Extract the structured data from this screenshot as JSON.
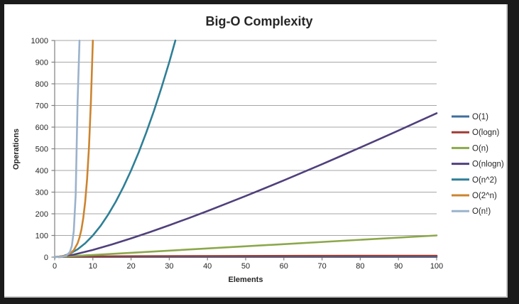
{
  "chart_data": {
    "type": "line",
    "title": "Big-O Complexity",
    "xlabel": "Elements",
    "ylabel": "Operations",
    "xlim": [
      0,
      100
    ],
    "ylim": [
      0,
      1000
    ],
    "xticks": [
      0,
      10,
      20,
      30,
      40,
      50,
      60,
      70,
      80,
      90,
      100
    ],
    "yticks": [
      0,
      100,
      200,
      300,
      400,
      500,
      600,
      700,
      800,
      900,
      1000
    ],
    "grid": "horizontal",
    "legend_position": "right",
    "series": [
      {
        "name": "O(1)",
        "color": "#3E6E9E",
        "points": [
          [
            0,
            1
          ],
          [
            100,
            1
          ]
        ]
      },
      {
        "name": "O(logn)",
        "color": "#9E3B33",
        "points": [
          [
            1,
            0
          ],
          [
            2,
            1
          ],
          [
            4,
            2
          ],
          [
            8,
            3
          ],
          [
            16,
            4
          ],
          [
            32,
            5
          ],
          [
            64,
            6
          ],
          [
            100,
            6.6
          ]
        ]
      },
      {
        "name": "O(n)",
        "color": "#8CA84B",
        "points": [
          [
            0,
            0
          ],
          [
            100,
            100
          ]
        ]
      },
      {
        "name": "O(nlogn)",
        "color": "#50407C",
        "points": [
          [
            0,
            0
          ],
          [
            5,
            11.6
          ],
          [
            10,
            33.2
          ],
          [
            15,
            58.6
          ],
          [
            20,
            86.4
          ],
          [
            25,
            116.1
          ],
          [
            30,
            147.2
          ],
          [
            35,
            179.5
          ],
          [
            40,
            212.9
          ],
          [
            45,
            247.2
          ],
          [
            50,
            282.2
          ],
          [
            55,
            318.0
          ],
          [
            60,
            354.4
          ],
          [
            65,
            391.5
          ],
          [
            70,
            429.0
          ],
          [
            75,
            467.2
          ],
          [
            80,
            505.8
          ],
          [
            85,
            544.8
          ],
          [
            90,
            584.3
          ],
          [
            95,
            624.1
          ],
          [
            100,
            664.4
          ]
        ]
      },
      {
        "name": "O(n^2)",
        "color": "#2E7F96",
        "points": [
          [
            0,
            0
          ],
          [
            2,
            4
          ],
          [
            4,
            16
          ],
          [
            6,
            36
          ],
          [
            8,
            64
          ],
          [
            10,
            100
          ],
          [
            12,
            144
          ],
          [
            14,
            196
          ],
          [
            16,
            256
          ],
          [
            18,
            324
          ],
          [
            20,
            400
          ],
          [
            22,
            484
          ],
          [
            24,
            576
          ],
          [
            26,
            676
          ],
          [
            28,
            784
          ],
          [
            30,
            900
          ],
          [
            31.6,
            1000
          ]
        ]
      },
      {
        "name": "O(2^n)",
        "color": "#CC842F",
        "points": [
          [
            0,
            1
          ],
          [
            1,
            2
          ],
          [
            2,
            4
          ],
          [
            3,
            8
          ],
          [
            4,
            16
          ],
          [
            5,
            32
          ],
          [
            6,
            64
          ],
          [
            6.5,
            90.5
          ],
          [
            7,
            128
          ],
          [
            7.5,
            181
          ],
          [
            8,
            256
          ],
          [
            8.5,
            362
          ],
          [
            9,
            512
          ],
          [
            9.5,
            724
          ],
          [
            10,
            1000
          ]
        ]
      },
      {
        "name": "O(n!)",
        "color": "#9BB2CC",
        "points": [
          [
            0,
            1
          ],
          [
            1,
            1
          ],
          [
            2,
            2
          ],
          [
            3,
            6
          ],
          [
            4,
            24
          ],
          [
            4.5,
            52
          ],
          [
            5,
            120
          ],
          [
            5.5,
            288
          ],
          [
            6,
            720
          ],
          [
            6.5,
            1000
          ]
        ]
      }
    ]
  },
  "style": {
    "frame_color": "#1b1b1b",
    "background": "#ffffff",
    "gridline_color": "#A6A6A6",
    "axis_color": "#7F7F7F",
    "text_color": "#262626",
    "inner_edge_color": "#c9c9c9"
  }
}
